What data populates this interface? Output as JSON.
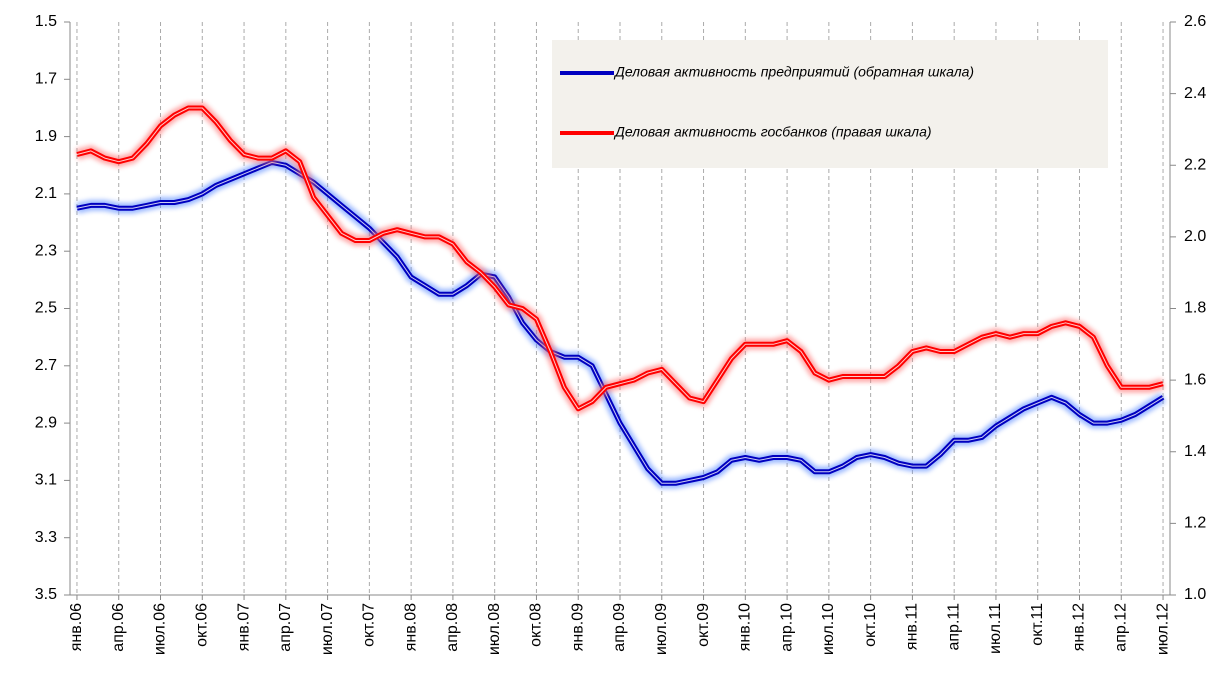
{
  "chart_data": {
    "type": "line",
    "categories": [
      "янв.06",
      null,
      null,
      "апр.06",
      null,
      null,
      "июл.06",
      null,
      null,
      "окт.06",
      null,
      null,
      "янв.07",
      null,
      null,
      "апр.07",
      null,
      null,
      "июл.07",
      null,
      null,
      "окт.07",
      null,
      null,
      "янв.08",
      null,
      null,
      "апр.08",
      null,
      null,
      "июл.08",
      null,
      null,
      "окт.08",
      null,
      null,
      "янв.09",
      null,
      null,
      "апр.09",
      null,
      null,
      "июл.09",
      null,
      null,
      "окт.09",
      null,
      null,
      "янв.10",
      null,
      null,
      "апр.10",
      null,
      null,
      "июл.10",
      null,
      null,
      "окт.10",
      null,
      null,
      "янв.11",
      null,
      null,
      "апр.11",
      null,
      null,
      "июл.11",
      null,
      null,
      "окт.11",
      null,
      null,
      "янв.12",
      null,
      null,
      "апр.12",
      null,
      null,
      "июл.12"
    ],
    "series": [
      {
        "name": "Деловая активность предприятий (обратная шкала)",
        "color": "#0000c0",
        "glow": "#5b8cff",
        "axis": "y",
        "values": [
          2.15,
          2.14,
          2.14,
          2.15,
          2.15,
          2.14,
          2.13,
          2.13,
          2.12,
          2.1,
          2.07,
          2.05,
          2.03,
          2.01,
          1.99,
          2.0,
          2.03,
          2.06,
          2.1,
          2.14,
          2.18,
          2.22,
          2.27,
          2.32,
          2.39,
          2.42,
          2.45,
          2.45,
          2.42,
          2.38,
          2.39,
          2.46,
          2.55,
          2.61,
          2.65,
          2.67,
          2.67,
          2.7,
          2.8,
          2.9,
          2.98,
          3.06,
          3.11,
          3.11,
          3.1,
          3.09,
          3.07,
          3.03,
          3.02,
          3.03,
          3.02,
          3.02,
          3.03,
          3.07,
          3.07,
          3.05,
          3.02,
          3.01,
          3.02,
          3.04,
          3.05,
          3.05,
          3.01,
          2.96,
          2.96,
          2.95,
          2.91,
          2.88,
          2.85,
          2.83,
          2.81,
          2.83,
          2.87,
          2.9,
          2.9,
          2.89,
          2.87,
          2.84,
          2.81
        ]
      },
      {
        "name": "Деловая активность госбанков (правая шкала)",
        "color": "#ff0000",
        "glow": "#ff7070",
        "axis": "y2",
        "values": [
          2.23,
          2.24,
          2.22,
          2.21,
          2.22,
          2.26,
          2.31,
          2.34,
          2.36,
          2.36,
          2.32,
          2.27,
          2.23,
          2.22,
          2.22,
          2.24,
          2.21,
          2.11,
          2.06,
          2.01,
          1.99,
          1.99,
          2.01,
          2.02,
          2.01,
          2.0,
          2.0,
          1.98,
          1.93,
          1.9,
          1.86,
          1.81,
          1.8,
          1.77,
          1.68,
          1.58,
          1.52,
          1.54,
          1.58,
          1.59,
          1.6,
          1.62,
          1.63,
          1.59,
          1.55,
          1.54,
          1.6,
          1.66,
          1.7,
          1.7,
          1.7,
          1.71,
          1.68,
          1.62,
          1.6,
          1.61,
          1.61,
          1.61,
          1.61,
          1.64,
          1.68,
          1.69,
          1.68,
          1.68,
          1.7,
          1.72,
          1.73,
          1.72,
          1.73,
          1.73,
          1.75,
          1.76,
          1.75,
          1.72,
          1.64,
          1.58,
          1.58,
          1.58,
          1.59
        ]
      }
    ],
    "ylim": [
      3.5,
      1.5
    ],
    "yticks": [
      1.5,
      1.7,
      1.9,
      2.1,
      2.3,
      2.5,
      2.7,
      2.9,
      3.1,
      3.3,
      3.5
    ],
    "y2lim": [
      1,
      2.6
    ],
    "y2ticks": [
      {
        "value": 1,
        "label": "1.0"
      },
      1.2,
      1.4,
      1.6,
      1.8,
      {
        "value": 2,
        "label": "2.0"
      },
      2.2,
      2.4,
      2.6
    ],
    "grid": "x",
    "legend": "top-right"
  }
}
